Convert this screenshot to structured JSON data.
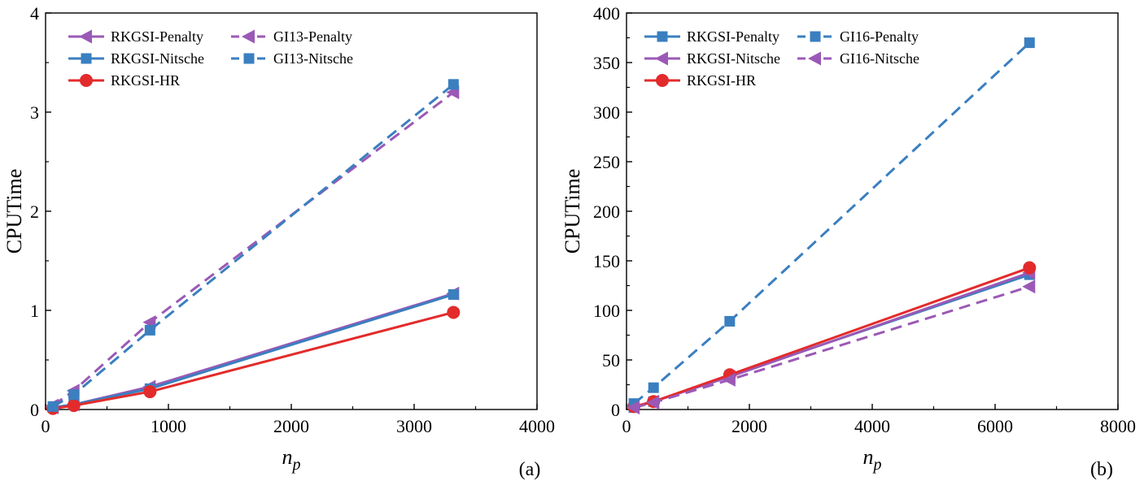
{
  "chart_data": [
    {
      "type": "line",
      "panel_label": "(a)",
      "xlabel_main": "n",
      "xlabel_sub": "p",
      "ylabel": "CPUTime",
      "xlim": [
        0,
        4000
      ],
      "ylim": [
        0,
        4
      ],
      "xticks": [
        0,
        1000,
        2000,
        3000,
        4000
      ],
      "yticks": [
        0,
        1,
        2,
        3,
        4
      ],
      "legend_placement": "top-left",
      "series": [
        {
          "name": "RKGSI-Penalty",
          "color": "#9b59b6",
          "dashed": false,
          "marker": "triangle-left",
          "x": [
            60,
            230,
            850,
            3320
          ],
          "y": [
            0.02,
            0.05,
            0.23,
            1.17
          ]
        },
        {
          "name": "RKGSI-Nitsche",
          "color": "#3a7fc0",
          "dashed": false,
          "marker": "square",
          "x": [
            60,
            230,
            850,
            3320
          ],
          "y": [
            0.02,
            0.05,
            0.21,
            1.16
          ]
        },
        {
          "name": "RKGSI-HR",
          "color": "#e32b2b",
          "dashed": false,
          "marker": "circle",
          "x": [
            60,
            230,
            850,
            3320
          ],
          "y": [
            0.01,
            0.04,
            0.18,
            0.98
          ]
        },
        {
          "name": "GI13-Penalty",
          "color": "#9b59b6",
          "dashed": true,
          "marker": "triangle-left",
          "x": [
            60,
            230,
            850,
            3320
          ],
          "y": [
            0.04,
            0.19,
            0.88,
            3.2
          ]
        },
        {
          "name": "GI13-Nitsche",
          "color": "#3a7fc0",
          "dashed": true,
          "marker": "square",
          "x": [
            60,
            230,
            850,
            3320
          ],
          "y": [
            0.03,
            0.15,
            0.8,
            3.28
          ]
        }
      ]
    },
    {
      "type": "line",
      "panel_label": "(b)",
      "xlabel_main": "n",
      "xlabel_sub": "p",
      "ylabel": "CPUTime",
      "xlim": [
        0,
        8000
      ],
      "ylim": [
        0,
        400
      ],
      "xticks": [
        0,
        2000,
        4000,
        6000,
        8000
      ],
      "yticks": [
        0,
        50,
        100,
        150,
        200,
        250,
        300,
        350,
        400
      ],
      "legend_placement": "top-left",
      "series": [
        {
          "name": "RKGSI-Penalty",
          "color": "#3a7fc0",
          "dashed": false,
          "marker": "square",
          "x": [
            120,
            440,
            1680,
            6560
          ],
          "y": [
            2,
            8,
            34,
            136
          ]
        },
        {
          "name": "RKGSI-Nitsche",
          "color": "#9b59b6",
          "dashed": false,
          "marker": "triangle-left",
          "x": [
            120,
            440,
            1680,
            6560
          ],
          "y": [
            2,
            8,
            33,
            138
          ]
        },
        {
          "name": "RKGSI-HR",
          "color": "#e32b2b",
          "dashed": false,
          "marker": "circle",
          "x": [
            120,
            440,
            1680,
            6560
          ],
          "y": [
            3,
            8,
            35,
            143
          ]
        },
        {
          "name": "GI16-Penalty",
          "color": "#3a7fc0",
          "dashed": true,
          "marker": "square",
          "x": [
            120,
            440,
            1680,
            6560
          ],
          "y": [
            6,
            22,
            89,
            370
          ]
        },
        {
          "name": "GI16-Nitsche",
          "color": "#9b59b6",
          "dashed": true,
          "marker": "triangle-left",
          "x": [
            120,
            440,
            1680,
            6560
          ],
          "y": [
            2,
            7,
            30,
            124
          ]
        }
      ]
    }
  ]
}
